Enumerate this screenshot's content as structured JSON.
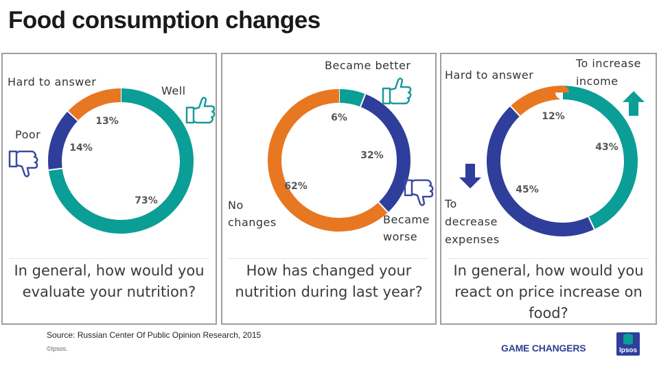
{
  "title": "Food consumption changes",
  "colors": {
    "teal": "#0a9e96",
    "navy": "#2e3e9a",
    "orange": "#e87722",
    "icon": "#1a9a9a",
    "icon_down": "#3a4aa0"
  },
  "chart_data": [
    {
      "type": "donut",
      "title": "In general, how would you evaluate your nutrition?",
      "labels": [
        "Well",
        "Poor",
        "Hard to answer"
      ],
      "values": [
        73,
        14,
        13
      ],
      "value_labels": [
        "73%",
        "14%",
        "13%"
      ],
      "colors": [
        "#0a9e96",
        "#2e3e9a",
        "#e87722"
      ]
    },
    {
      "type": "donut",
      "title": "How has changed your nutrition during last year?",
      "labels": [
        "Became better",
        "Became worse",
        "No changes"
      ],
      "values": [
        6,
        32,
        62
      ],
      "value_labels": [
        "6%",
        "32%",
        "62%"
      ],
      "colors": [
        "#0a9e96",
        "#2e3e9a",
        "#e87722"
      ]
    },
    {
      "type": "donut",
      "title": "In general, how would you react on price increase on food?",
      "labels": [
        "To increase income",
        "To decrease expenses",
        "Hard to answer"
      ],
      "values": [
        43,
        45,
        12
      ],
      "value_labels": [
        "43%",
        "45%",
        "12%"
      ],
      "colors": [
        "#0a9e96",
        "#2e3e9a",
        "#e87722"
      ]
    }
  ],
  "panels": [
    {
      "question": "In general, how would you evaluate your nutrition?",
      "labels": {
        "a": "Well",
        "b": "Poor",
        "c": "Hard to answer"
      }
    },
    {
      "question": "How has changed your nutrition during last year?",
      "labels": {
        "a": "Became better",
        "b1": "Became",
        "b2": "worse",
        "c1": "No",
        "c2": "changes"
      }
    },
    {
      "question": "In general, how would you react on price increase on food?",
      "labels": {
        "a1": "To increase",
        "a2": "income",
        "b1": "To",
        "b2": "decrease",
        "b3": "expenses",
        "c": "Hard to answer"
      }
    }
  ],
  "source": "Source: Russian Center Of Public Opinion Research, 2015",
  "copyright": "©Ipsos.",
  "brand": "GAME CHANGERS",
  "logo_text": "Ipsos"
}
